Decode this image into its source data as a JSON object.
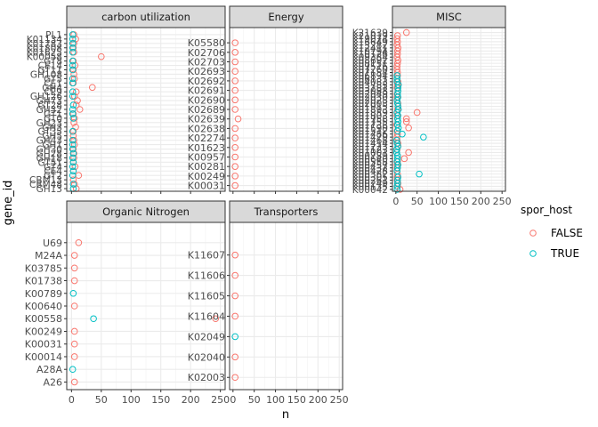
{
  "chart_data": {
    "type": "scatter",
    "xlabel": "n",
    "ylabel": "gene_id",
    "xlim": [
      -8,
      258
    ],
    "x_ticks": [
      0,
      50,
      100,
      150,
      200,
      250
    ],
    "grid": true,
    "legend": {
      "title": "spor_host",
      "position": "right",
      "items": [
        {
          "label": "FALSE",
          "color": "#F8766D"
        },
        {
          "label": "TRUE",
          "color": "#00BFC4"
        }
      ]
    },
    "panels": [
      {
        "title": "carbon utilization",
        "categories": [
          "GH13",
          "CBM48",
          "CBM13",
          "GT2",
          "CE4",
          "GT4",
          "GT51",
          "GH18",
          "GH28",
          "GH30",
          "GH1",
          "GH43",
          "GH5",
          "GT35",
          "GH3",
          "GH23",
          "GT0",
          "GT1",
          "GH32",
          "GT28",
          "GH73",
          "GH126",
          "CE9",
          "GH4",
          "CE1",
          "GT5",
          "GH108",
          "GT11",
          "CE14",
          "GT8",
          "K00058",
          "K01625",
          "K01808",
          "K01783",
          "K01134",
          "PL1"
        ],
        "series": [
          {
            "name": "FALSE",
            "points": [
              [
                "GH13",
                8
              ],
              [
                "CBM48",
                5
              ],
              [
                "CBM13",
                3
              ],
              [
                "GT2",
                12
              ],
              [
                "CE4",
                3
              ],
              [
                "GT4",
                6
              ],
              [
                "GT51",
                3
              ],
              [
                "GH18",
                4
              ],
              [
                "GH28",
                4
              ],
              [
                "GH30",
                3
              ],
              [
                "GH1",
                5
              ],
              [
                "GH43",
                4
              ],
              [
                "GH5",
                3
              ],
              [
                "GT35",
                3
              ],
              [
                "GH3",
                7
              ],
              [
                "GH23",
                4
              ],
              [
                "GT0",
                5
              ],
              [
                "GT1",
                3
              ],
              [
                "GH32",
                14
              ],
              [
                "GT28",
                8
              ],
              [
                "GH73",
                10
              ],
              [
                "GH126",
                5
              ],
              [
                "CE9",
                8
              ],
              [
                "GH4",
                35
              ],
              [
                "CE1",
                3
              ],
              [
                "GT5",
                5
              ],
              [
                "GH108",
                4
              ],
              [
                "GT11",
                3
              ],
              [
                "CE14",
                6
              ],
              [
                "GT8",
                3
              ],
              [
                "K00058",
                50
              ],
              [
                "K01625",
                4
              ],
              [
                "K01808",
                3
              ],
              [
                "K01783",
                4
              ],
              [
                "K01134",
                7
              ],
              [
                "PL1",
                4
              ]
            ]
          },
          {
            "name": "TRUE",
            "points": [
              [
                "GH13",
                3
              ],
              [
                "CBM48",
                3
              ],
              [
                "GT2",
                2
              ],
              [
                "CE4",
                3
              ],
              [
                "GT4",
                2
              ],
              [
                "GT51",
                3
              ],
              [
                "GH18",
                2
              ],
              [
                "GH28",
                3
              ],
              [
                "GH30",
                2
              ],
              [
                "GH1",
                2
              ],
              [
                "GH43",
                2
              ],
              [
                "GT35",
                2
              ],
              [
                "GT0",
                3
              ],
              [
                "GT1",
                2
              ],
              [
                "GH32",
                2
              ],
              [
                "GT28",
                3
              ],
              [
                "GH126",
                2
              ],
              [
                "CE9",
                2
              ],
              [
                "CE1",
                2
              ],
              [
                "GT5",
                2
              ],
              [
                "GT11",
                2
              ],
              [
                "CE14",
                2
              ],
              [
                "GT8",
                2
              ],
              [
                "K01625",
                2
              ],
              [
                "K01808",
                2
              ],
              [
                "K01783",
                2
              ],
              [
                "K01134",
                2
              ],
              [
                "PL1",
                2
              ]
            ]
          }
        ]
      },
      {
        "title": "Energy",
        "categories": [
          "K00031",
          "K00249",
          "K00281",
          "K00957",
          "K01623",
          "K02274",
          "K02638",
          "K02639",
          "K02689",
          "K02690",
          "K02691",
          "K02692",
          "K02693",
          "K02703",
          "K02706",
          "K05580"
        ],
        "series": [
          {
            "name": "FALSE",
            "points": [
              [
                "K00031",
                5
              ],
              [
                "K00249",
                5
              ],
              [
                "K00281",
                5
              ],
              [
                "K00957",
                5
              ],
              [
                "K01623",
                5
              ],
              [
                "K02274",
                5
              ],
              [
                "K02638",
                5
              ],
              [
                "K02639",
                12
              ],
              [
                "K02689",
                5
              ],
              [
                "K02690",
                5
              ],
              [
                "K02691",
                5
              ],
              [
                "K02692",
                5
              ],
              [
                "K02693",
                5
              ],
              [
                "K02703",
                5
              ],
              [
                "K02706",
                5
              ],
              [
                "K05580",
                5
              ]
            ]
          }
        ]
      },
      {
        "title": "MISC",
        "categories": [
          "K00042",
          "K00135",
          "K00249",
          "K00261",
          "K00305",
          "K00382",
          "K00428",
          "K00432",
          "K00457",
          "K00558",
          "K00640",
          "K00789",
          "K01001",
          "K01123",
          "K01223",
          "K01414",
          "K01468",
          "K01479",
          "K01486",
          "K01512",
          "K01590",
          "K01738",
          "K01755",
          "K01758",
          "K01803",
          "K01859",
          "K01893",
          "K01915",
          "K02003",
          "K02028",
          "K02030",
          "K02049",
          "K03088",
          "K03281",
          "K03785",
          "K04083",
          "K06131",
          "K06894",
          "K07154",
          "K07260",
          "K07516",
          "K08151",
          "K08692",
          "K09384",
          "K10126",
          "K10794",
          "K12411",
          "K13282",
          "K16649",
          "K19074",
          "K21019",
          "K21639"
        ],
        "series": [
          {
            "name": "FALSE",
            "points": [
              [
                "K00042",
                10
              ],
              [
                "K00135",
                4
              ],
              [
                "K00249",
                5
              ],
              [
                "K00261",
                3
              ],
              [
                "K00305",
                3
              ],
              [
                "K00382",
                4
              ],
              [
                "K00428",
                3
              ],
              [
                "K00432",
                3
              ],
              [
                "K00457",
                3
              ],
              [
                "K00558",
                4
              ],
              [
                "K00640",
                20
              ],
              [
                "K00789",
                4
              ],
              [
                "K01001",
                30
              ],
              [
                "K01123",
                3
              ],
              [
                "K01223",
                5
              ],
              [
                "K01414",
                5
              ],
              [
                "K01468",
                3
              ],
              [
                "K01479",
                3
              ],
              [
                "K01486",
                4
              ],
              [
                "K01512",
                3
              ],
              [
                "K01590",
                30
              ],
              [
                "K01738",
                2
              ],
              [
                "K01755",
                25
              ],
              [
                "K01758",
                25
              ],
              [
                "K01803",
                3
              ],
              [
                "K01859",
                50
              ],
              [
                "K01893",
                4
              ],
              [
                "K01915",
                5
              ],
              [
                "K02003",
                5
              ],
              [
                "K02028",
                3
              ],
              [
                "K02030",
                3
              ],
              [
                "K02049",
                3
              ],
              [
                "K03088",
                5
              ],
              [
                "K03281",
                3
              ],
              [
                "K03785",
                4
              ],
              [
                "K04083",
                5
              ],
              [
                "K06131",
                3
              ],
              [
                "K06894",
                4
              ],
              [
                "K07154",
                4
              ],
              [
                "K07260",
                3
              ],
              [
                "K07516",
                3
              ],
              [
                "K08151",
                4
              ],
              [
                "K08692",
                5
              ],
              [
                "K09384",
                3
              ],
              [
                "K10126",
                4
              ],
              [
                "K10794",
                4
              ],
              [
                "K12411",
                5
              ],
              [
                "K13282",
                3
              ],
              [
                "K16649",
                4
              ],
              [
                "K19074",
                3
              ],
              [
                "K21019",
                4
              ],
              [
                "K21639",
                25
              ]
            ]
          },
          {
            "name": "TRUE",
            "points": [
              [
                "K00042",
                3
              ],
              [
                "K00135",
                3
              ],
              [
                "K00249",
                4
              ],
              [
                "K00261",
                4
              ],
              [
                "K00305",
                5
              ],
              [
                "K00382",
                55
              ],
              [
                "K00428",
                3
              ],
              [
                "K00432",
                4
              ],
              [
                "K00457",
                5
              ],
              [
                "K00558",
                3
              ],
              [
                "K00640",
                4
              ],
              [
                "K00789",
                4
              ],
              [
                "K01001",
                2
              ],
              [
                "K01123",
                2
              ],
              [
                "K01223",
                5
              ],
              [
                "K01414",
                3
              ],
              [
                "K01468",
                2
              ],
              [
                "K01479",
                65
              ],
              [
                "K01486",
                15
              ],
              [
                "K01512",
                4
              ],
              [
                "K01590",
                6
              ],
              [
                "K01738",
                4
              ],
              [
                "K01755",
                5
              ],
              [
                "K01758",
                4
              ],
              [
                "K01803",
                5
              ],
              [
                "K01859",
                3
              ],
              [
                "K01893",
                6
              ],
              [
                "K01915",
                5
              ],
              [
                "K02003",
                4
              ],
              [
                "K02028",
                3
              ],
              [
                "K02030",
                5
              ],
              [
                "K02049",
                4
              ],
              [
                "K03088",
                5
              ],
              [
                "K03281",
                5
              ],
              [
                "K03785",
                6
              ],
              [
                "K04083",
                3
              ],
              [
                "K06131",
                3
              ],
              [
                "K06894",
                3
              ]
            ]
          }
        ]
      },
      {
        "title": "Organic Nitrogen",
        "categories": [
          "A26",
          "A28A",
          "K00014",
          "K00031",
          "K00249",
          "K00558",
          "K00640",
          "K00789",
          "K01738",
          "K03785",
          "M24A",
          "U69"
        ],
        "series": [
          {
            "name": "FALSE",
            "points": [
              [
                "A26",
                5
              ],
              [
                "K00014",
                5
              ],
              [
                "K00031",
                5
              ],
              [
                "K00249",
                5
              ],
              [
                "K00558",
                242
              ],
              [
                "K00640",
                5
              ],
              [
                "K01738",
                5
              ],
              [
                "K03785",
                5
              ],
              [
                "M24A",
                5
              ],
              [
                "U69",
                12
              ]
            ]
          },
          {
            "name": "TRUE",
            "points": [
              [
                "A28A",
                2
              ],
              [
                "K00558",
                37
              ],
              [
                "K00789",
                3
              ]
            ]
          }
        ]
      },
      {
        "title": "Transporters",
        "categories": [
          "K02003",
          "K02040",
          "K02049",
          "K11604",
          "K11605",
          "K11606",
          "K11607"
        ],
        "series": [
          {
            "name": "FALSE",
            "points": [
              [
                "K02003",
                5
              ],
              [
                "K02040",
                5
              ],
              [
                "K11604",
                5
              ],
              [
                "K11605",
                5
              ],
              [
                "K11606",
                5
              ],
              [
                "K11607",
                5
              ]
            ]
          },
          {
            "name": "TRUE",
            "points": [
              [
                "K02049",
                5
              ]
            ]
          }
        ]
      }
    ]
  }
}
